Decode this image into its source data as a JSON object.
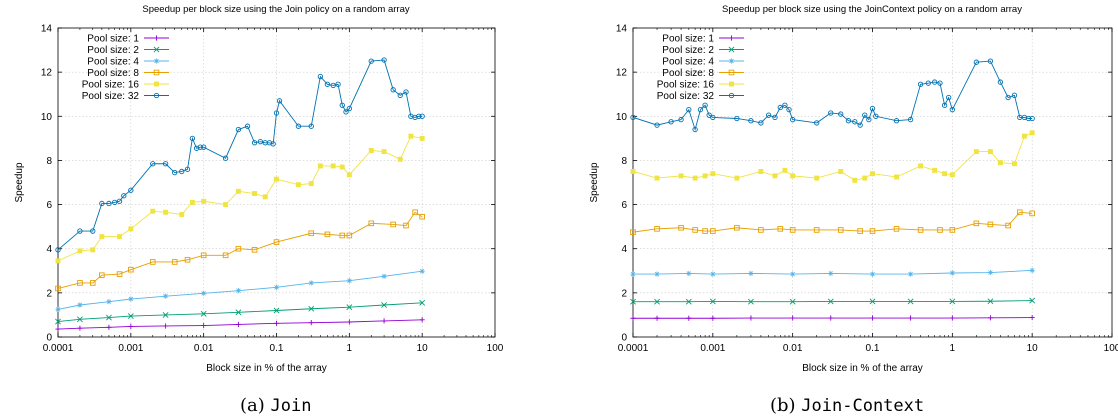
{
  "captions": [
    {
      "prefix": "(a) ",
      "name": "Join"
    },
    {
      "prefix": "(b) ",
      "name": "Join-Context"
    }
  ],
  "chart_data": [
    {
      "type": "line",
      "title": "Speedup per block size using the Join policy on a random array",
      "xlabel": "Block size in % of the array",
      "ylabel": "Speedup",
      "xscale": "log",
      "xlim": [
        0.0001,
        100
      ],
      "ylim": [
        0,
        14
      ],
      "xticks": [
        0.0001,
        0.001,
        0.01,
        0.1,
        1,
        10,
        100
      ],
      "xtick_labels": [
        "0.0001",
        "0.001",
        "0.01",
        "0.1",
        "1",
        "10",
        "100"
      ],
      "yticks": [
        0,
        2,
        4,
        6,
        8,
        10,
        12,
        14
      ],
      "ytick_labels": [
        "0",
        "2",
        "4",
        "6",
        "8",
        "10",
        "12",
        "14"
      ],
      "grid": true,
      "legend": "top-left",
      "series": [
        {
          "name": "Pool size: 1",
          "color": "#9400d3",
          "marker": "plus",
          "x": [
            0.0001,
            0.0002,
            0.0005,
            0.001,
            0.003,
            0.01,
            0.03,
            0.1,
            0.3,
            1,
            3,
            10
          ],
          "y": [
            0.36,
            0.4,
            0.44,
            0.48,
            0.5,
            0.52,
            0.57,
            0.62,
            0.65,
            0.68,
            0.73,
            0.78
          ]
        },
        {
          "name": "Pool size: 2",
          "color": "#009e73",
          "marker": "cross",
          "x": [
            0.0001,
            0.0002,
            0.0005,
            0.001,
            0.003,
            0.01,
            0.03,
            0.1,
            0.3,
            1,
            3,
            10
          ],
          "y": [
            0.7,
            0.8,
            0.88,
            0.95,
            1.0,
            1.05,
            1.12,
            1.2,
            1.28,
            1.35,
            1.45,
            1.55
          ]
        },
        {
          "name": "Pool size: 4",
          "color": "#56b4e9",
          "marker": "star",
          "x": [
            0.0001,
            0.0002,
            0.0005,
            0.001,
            0.003,
            0.01,
            0.03,
            0.1,
            0.3,
            1,
            3,
            10
          ],
          "y": [
            1.25,
            1.45,
            1.6,
            1.72,
            1.85,
            1.98,
            2.1,
            2.25,
            2.45,
            2.55,
            2.75,
            2.98
          ]
        },
        {
          "name": "Pool size: 8",
          "color": "#e69f00",
          "marker": "square",
          "x": [
            0.0001,
            0.0002,
            0.0003,
            0.0004,
            0.0007,
            0.001,
            0.002,
            0.004,
            0.006,
            0.01,
            0.02,
            0.03,
            0.05,
            0.1,
            0.3,
            0.5,
            0.8,
            1,
            2,
            4,
            6,
            8,
            10
          ],
          "y": [
            2.2,
            2.45,
            2.45,
            2.8,
            2.85,
            3.05,
            3.4,
            3.4,
            3.5,
            3.7,
            3.7,
            4.0,
            3.95,
            4.3,
            4.7,
            4.65,
            4.6,
            4.6,
            5.15,
            5.1,
            5.05,
            5.65,
            5.45
          ]
        },
        {
          "name": "Pool size: 16",
          "color": "#f0e442",
          "marker": "filled-square",
          "x": [
            0.0001,
            0.0002,
            0.0003,
            0.0004,
            0.0007,
            0.001,
            0.002,
            0.003,
            0.005,
            0.007,
            0.01,
            0.02,
            0.03,
            0.05,
            0.07,
            0.1,
            0.2,
            0.3,
            0.4,
            0.6,
            0.8,
            1,
            2,
            3,
            5,
            7,
            10
          ],
          "y": [
            3.45,
            3.9,
            3.95,
            4.55,
            4.55,
            4.9,
            5.7,
            5.65,
            5.55,
            6.1,
            6.15,
            6.0,
            6.6,
            6.5,
            6.35,
            7.15,
            6.9,
            6.95,
            7.75,
            7.75,
            7.7,
            7.35,
            8.45,
            8.4,
            8.05,
            9.1,
            9.0
          ]
        },
        {
          "name": "Pool size: 32",
          "color": "#0072b2",
          "marker": "circle",
          "x": [
            0.0001,
            0.0002,
            0.0003,
            0.0004,
            0.0005,
            0.0006,
            0.0007,
            0.0008,
            0.001,
            0.002,
            0.003,
            0.004,
            0.005,
            0.006,
            0.007,
            0.008,
            0.009,
            0.01,
            0.02,
            0.03,
            0.04,
            0.05,
            0.06,
            0.07,
            0.08,
            0.09,
            0.1,
            0.11,
            0.2,
            0.3,
            0.4,
            0.5,
            0.6,
            0.7,
            0.8,
            0.9,
            1,
            2,
            3,
            4,
            5,
            6,
            7,
            8,
            9,
            10
          ],
          "y": [
            3.95,
            4.8,
            4.8,
            6.05,
            6.05,
            6.1,
            6.15,
            6.4,
            6.65,
            7.85,
            7.85,
            7.45,
            7.5,
            7.6,
            9.0,
            8.55,
            8.6,
            8.6,
            8.1,
            9.4,
            9.55,
            8.8,
            8.85,
            8.8,
            8.8,
            8.75,
            10.15,
            10.7,
            9.55,
            9.55,
            11.8,
            11.45,
            11.4,
            11.45,
            10.5,
            10.2,
            10.35,
            12.5,
            12.55,
            11.2,
            10.95,
            11.1,
            10.0,
            9.95,
            10.0,
            10.0
          ]
        }
      ]
    },
    {
      "type": "line",
      "title": "Speedup per block size using the JoinContext policy on a random array",
      "xlabel": "Block size in % of the array",
      "ylabel": "Speedup",
      "xscale": "log",
      "xlim": [
        0.0001,
        100
      ],
      "ylim": [
        0,
        14
      ],
      "xticks": [
        0.0001,
        0.001,
        0.01,
        0.1,
        1,
        10,
        100
      ],
      "xtick_labels": [
        "0.0001",
        "0.001",
        "0.01",
        "0.1",
        "1",
        "10",
        "100"
      ],
      "yticks": [
        0,
        2,
        4,
        6,
        8,
        10,
        12,
        14
      ],
      "ytick_labels": [
        "0",
        "2",
        "4",
        "6",
        "8",
        "10",
        "12",
        "14"
      ],
      "grid": true,
      "legend": "top-left",
      "series": [
        {
          "name": "Pool size: 1",
          "color": "#9400d3",
          "marker": "plus",
          "x": [
            0.0001,
            0.0002,
            0.0005,
            0.001,
            0.003,
            0.01,
            0.03,
            0.1,
            0.3,
            1,
            3,
            10
          ],
          "y": [
            0.85,
            0.85,
            0.85,
            0.85,
            0.86,
            0.86,
            0.86,
            0.86,
            0.86,
            0.86,
            0.87,
            0.88
          ]
        },
        {
          "name": "Pool size: 2",
          "color": "#009e73",
          "marker": "cross",
          "x": [
            0.0001,
            0.0002,
            0.0005,
            0.001,
            0.003,
            0.01,
            0.03,
            0.1,
            0.3,
            1,
            3,
            10
          ],
          "y": [
            1.6,
            1.6,
            1.6,
            1.61,
            1.6,
            1.6,
            1.61,
            1.61,
            1.61,
            1.61,
            1.62,
            1.65
          ]
        },
        {
          "name": "Pool size: 4",
          "color": "#56b4e9",
          "marker": "star",
          "x": [
            0.0001,
            0.0002,
            0.0005,
            0.001,
            0.003,
            0.01,
            0.03,
            0.1,
            0.3,
            1,
            3,
            10
          ],
          "y": [
            2.85,
            2.85,
            2.88,
            2.85,
            2.88,
            2.85,
            2.88,
            2.85,
            2.85,
            2.9,
            2.92,
            3.02
          ]
        },
        {
          "name": "Pool size: 8",
          "color": "#e69f00",
          "marker": "square",
          "x": [
            0.0001,
            0.0002,
            0.0004,
            0.0006,
            0.0008,
            0.001,
            0.002,
            0.004,
            0.007,
            0.01,
            0.02,
            0.04,
            0.07,
            0.1,
            0.2,
            0.4,
            0.7,
            1,
            2,
            3,
            5,
            7,
            10
          ],
          "y": [
            4.75,
            4.9,
            4.95,
            4.85,
            4.8,
            4.8,
            4.95,
            4.85,
            4.9,
            4.85,
            4.85,
            4.85,
            4.8,
            4.8,
            4.9,
            4.85,
            4.85,
            4.85,
            5.15,
            5.1,
            5.05,
            5.65,
            5.6
          ]
        },
        {
          "name": "Pool size: 16",
          "color": "#f0e442",
          "marker": "filled-square",
          "x": [
            0.0001,
            0.0002,
            0.0004,
            0.0006,
            0.0008,
            0.001,
            0.002,
            0.004,
            0.006,
            0.008,
            0.01,
            0.02,
            0.04,
            0.06,
            0.08,
            0.1,
            0.2,
            0.4,
            0.6,
            0.8,
            1,
            2,
            3,
            4,
            6,
            8,
            10
          ],
          "y": [
            7.5,
            7.2,
            7.3,
            7.2,
            7.3,
            7.4,
            7.2,
            7.5,
            7.3,
            7.55,
            7.3,
            7.2,
            7.5,
            7.1,
            7.2,
            7.4,
            7.25,
            7.75,
            7.55,
            7.4,
            7.35,
            8.4,
            8.4,
            7.9,
            7.85,
            9.1,
            9.25
          ]
        },
        {
          "name": "Pool size: 32",
          "color": "#0072b2",
          "marker": "circle",
          "x": [
            0.0001,
            0.0002,
            0.0003,
            0.0004,
            0.0005,
            0.0006,
            0.0007,
            0.0008,
            0.0009,
            0.001,
            0.002,
            0.003,
            0.004,
            0.005,
            0.006,
            0.007,
            0.008,
            0.009,
            0.01,
            0.02,
            0.03,
            0.04,
            0.05,
            0.06,
            0.07,
            0.08,
            0.09,
            0.1,
            0.11,
            0.2,
            0.3,
            0.4,
            0.5,
            0.6,
            0.7,
            0.8,
            0.9,
            1,
            2,
            3,
            4,
            5,
            6,
            7,
            8,
            9,
            10
          ],
          "y": [
            9.95,
            9.6,
            9.75,
            9.85,
            10.3,
            9.4,
            10.3,
            10.5,
            10.05,
            9.95,
            9.9,
            9.8,
            9.7,
            10.05,
            9.95,
            10.4,
            10.5,
            10.3,
            9.85,
            9.7,
            10.15,
            10.1,
            9.8,
            9.75,
            9.6,
            10.05,
            9.85,
            10.35,
            10.0,
            9.8,
            9.85,
            11.45,
            11.5,
            11.55,
            11.5,
            10.5,
            10.85,
            10.3,
            12.45,
            12.5,
            11.55,
            10.85,
            10.95,
            9.95,
            9.95,
            9.9,
            9.9
          ]
        }
      ]
    }
  ]
}
